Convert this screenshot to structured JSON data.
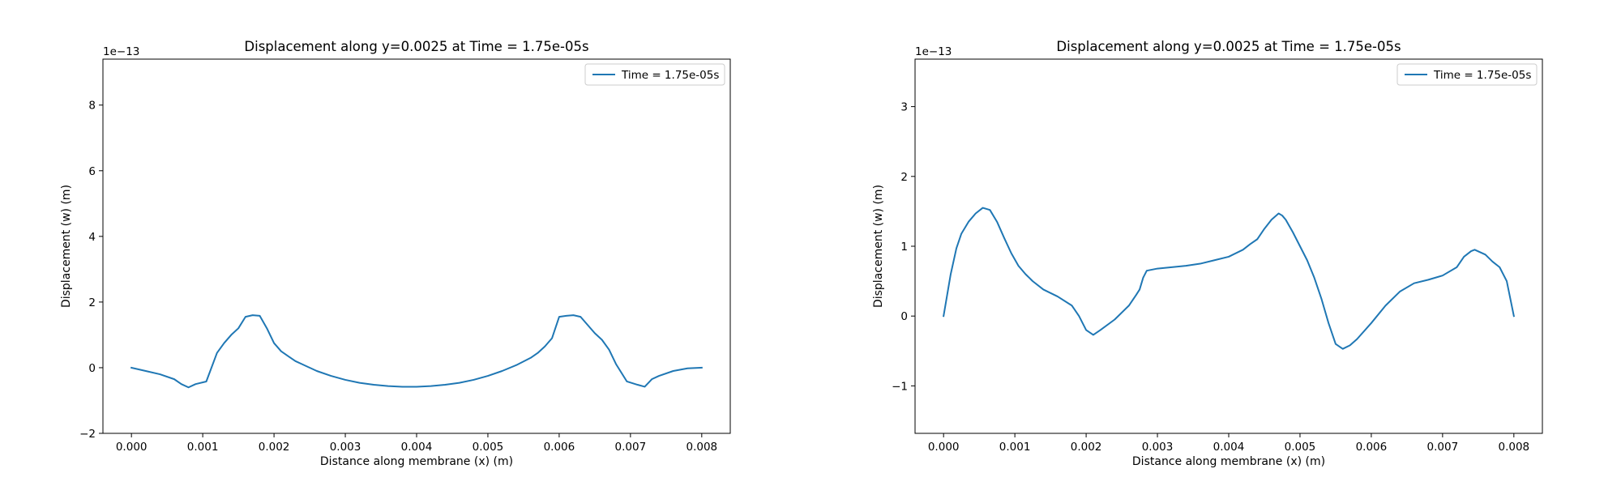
{
  "chart_data": [
    {
      "type": "line",
      "title": "Displacement along y=0.0025 at Time = 1.75e-05s",
      "xlabel": "Distance along membrane (x) (m)",
      "ylabel": "Displacement (w) (m)",
      "y_offset_label": "1e−13",
      "xlim": [
        -0.0004,
        0.0084
      ],
      "ylim": [
        -2,
        9.4
      ],
      "xticks": [
        0.0,
        0.001,
        0.002,
        0.003,
        0.004,
        0.005,
        0.006,
        0.007,
        0.008
      ],
      "xtick_labels": [
        "0.000",
        "0.001",
        "0.002",
        "0.003",
        "0.004",
        "0.005",
        "0.006",
        "0.007",
        "0.008"
      ],
      "yticks": [
        -2,
        0,
        2,
        4,
        6,
        8
      ],
      "ytick_labels": [
        "−2",
        "0",
        "2",
        "4",
        "6",
        "8"
      ],
      "grid": false,
      "legend_position": "top-right",
      "series": [
        {
          "name": "Time = 1.75e-05s",
          "color": "#1f77b4",
          "x": [
            0.0,
            0.0002,
            0.0004,
            0.0006,
            0.0007,
            0.0008,
            0.0009,
            0.00105,
            0.0012,
            0.0013,
            0.0014,
            0.0015,
            0.0016,
            0.0017,
            0.0018,
            0.0019,
            0.002,
            0.0021,
            0.0022,
            0.0023,
            0.0024,
            0.0026,
            0.0028,
            0.003,
            0.0032,
            0.0034,
            0.0036,
            0.0038,
            0.004,
            0.0042,
            0.0044,
            0.0046,
            0.0048,
            0.005,
            0.0052,
            0.0054,
            0.0056,
            0.0057,
            0.0058,
            0.0059,
            0.006,
            0.0061,
            0.0062,
            0.0063,
            0.0064,
            0.0065,
            0.0066,
            0.0067,
            0.0068,
            0.00695,
            0.0071,
            0.0072,
            0.0073,
            0.0074,
            0.0076,
            0.0078,
            0.008
          ],
          "y": [
            0.0,
            -0.1,
            -0.2,
            -0.35,
            -0.5,
            -0.6,
            -0.5,
            -0.42,
            0.45,
            0.75,
            1.0,
            1.2,
            1.55,
            1.6,
            1.58,
            1.2,
            0.75,
            0.5,
            0.35,
            0.2,
            0.1,
            -0.1,
            -0.25,
            -0.37,
            -0.46,
            -0.52,
            -0.56,
            -0.58,
            -0.58,
            -0.56,
            -0.52,
            -0.46,
            -0.37,
            -0.25,
            -0.1,
            0.08,
            0.3,
            0.45,
            0.65,
            0.9,
            1.55,
            1.58,
            1.6,
            1.55,
            1.3,
            1.05,
            0.85,
            0.55,
            0.1,
            -0.42,
            -0.52,
            -0.58,
            -0.35,
            -0.25,
            -0.1,
            -0.02,
            0.0
          ]
        }
      ]
    },
    {
      "type": "line",
      "title": "Displacement along y=0.0025 at Time = 1.75e-05s",
      "xlabel": "Distance along membrane (x) (m)",
      "ylabel": "Displacement (w) (m)",
      "y_offset_label": "1e−13",
      "xlim": [
        -0.0004,
        0.0084
      ],
      "ylim": [
        -1.68,
        3.68
      ],
      "xticks": [
        0.0,
        0.001,
        0.002,
        0.003,
        0.004,
        0.005,
        0.006,
        0.007,
        0.008
      ],
      "xtick_labels": [
        "0.000",
        "0.001",
        "0.002",
        "0.003",
        "0.004",
        "0.005",
        "0.006",
        "0.007",
        "0.008"
      ],
      "yticks": [
        -1,
        0,
        1,
        2,
        3
      ],
      "ytick_labels": [
        "−1",
        "0",
        "1",
        "2",
        "3"
      ],
      "grid": false,
      "legend_position": "top-right",
      "series": [
        {
          "name": "Time = 1.75e-05s",
          "color": "#1f77b4",
          "x": [
            0.0,
            5e-05,
            0.0001,
            0.00018,
            0.00025,
            0.00035,
            0.00045,
            0.00055,
            0.00065,
            0.00075,
            0.00085,
            0.00095,
            0.00105,
            0.00115,
            0.00125,
            0.0014,
            0.0016,
            0.0018,
            0.0019,
            0.002,
            0.0021,
            0.0022,
            0.0024,
            0.0026,
            0.0027,
            0.00275,
            0.0028,
            0.00285,
            0.003,
            0.0032,
            0.0034,
            0.0036,
            0.0038,
            0.004,
            0.0042,
            0.0043,
            0.0044,
            0.0045,
            0.0046,
            0.0047,
            0.00475,
            0.0048,
            0.0049,
            0.005,
            0.0051,
            0.0052,
            0.0053,
            0.0054,
            0.0055,
            0.0056,
            0.0057,
            0.0058,
            0.006,
            0.0062,
            0.0064,
            0.0066,
            0.0068,
            0.007,
            0.0072,
            0.0073,
            0.0074,
            0.00745,
            0.0076,
            0.0077,
            0.0078,
            0.0079,
            0.008
          ],
          "y": [
            0.0,
            0.3,
            0.6,
            0.97,
            1.18,
            1.35,
            1.47,
            1.55,
            1.52,
            1.35,
            1.12,
            0.9,
            0.72,
            0.6,
            0.5,
            0.38,
            0.28,
            0.15,
            0.0,
            -0.2,
            -0.27,
            -0.2,
            -0.05,
            0.15,
            0.3,
            0.38,
            0.55,
            0.65,
            0.68,
            0.7,
            0.72,
            0.75,
            0.8,
            0.85,
            0.95,
            1.03,
            1.1,
            1.25,
            1.38,
            1.47,
            1.44,
            1.38,
            1.2,
            1.0,
            0.8,
            0.55,
            0.25,
            -0.1,
            -0.4,
            -0.47,
            -0.42,
            -0.33,
            -0.1,
            0.15,
            0.35,
            0.47,
            0.52,
            0.58,
            0.7,
            0.85,
            0.93,
            0.95,
            0.88,
            0.78,
            0.7,
            0.5,
            0.0
          ]
        }
      ]
    }
  ]
}
